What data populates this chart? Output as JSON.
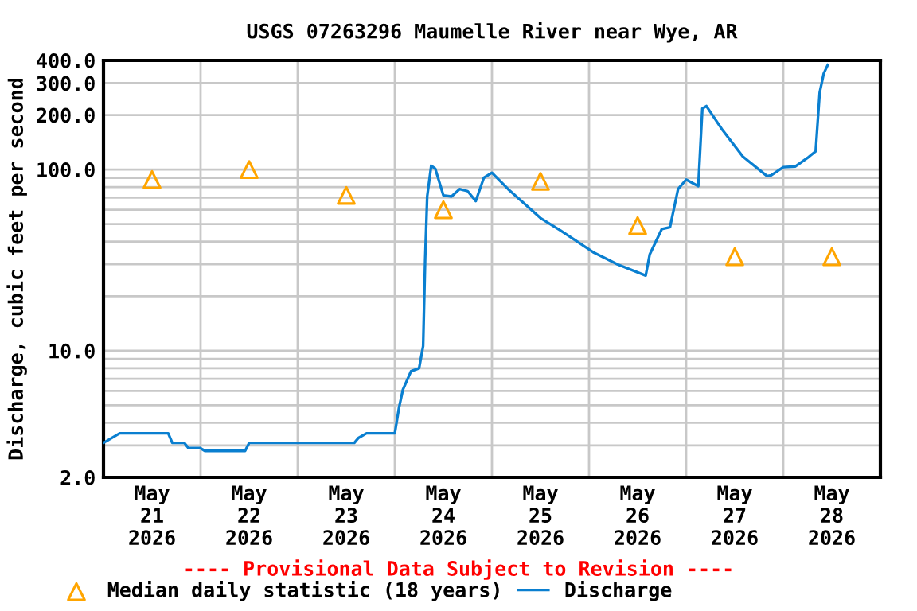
{
  "chart_data": {
    "type": "line",
    "title": "USGS 07263296 Maumelle River near Wye, AR",
    "ylabel": "Discharge, cubic feet per second",
    "annotations": [
      "---- Provisional Data Subject to Revision ----"
    ],
    "log": "y",
    "grid": true,
    "legend": "bottom",
    "xlim": [
      "2026-05-21T00:00",
      "2026-05-29T00:00"
    ],
    "xticks": [
      {
        "value": "2026-05-21T12:00",
        "label": "May\n21\n2026"
      },
      {
        "value": "2026-05-22T12:00",
        "label": "May\n22\n2026"
      },
      {
        "value": "2026-05-23T12:00",
        "label": "May\n23\n2026"
      },
      {
        "value": "2026-05-24T12:00",
        "label": "May\n24\n2026"
      },
      {
        "value": "2026-05-25T12:00",
        "label": "May\n25\n2026"
      },
      {
        "value": "2026-05-26T12:00",
        "label": "May\n26\n2026"
      },
      {
        "value": "2026-05-27T12:00",
        "label": "May\n27\n2026"
      },
      {
        "value": "2026-05-28T12:00",
        "label": "May\n28\n2026"
      },
      {
        "value": "2026-05-22T00:00",
        "label": null
      },
      {
        "value": "2026-05-23T00:00",
        "label": null
      },
      {
        "value": "2026-05-24T00:00",
        "label": null
      },
      {
        "value": "2026-05-25T00:00",
        "label": null
      },
      {
        "value": "2026-05-26T00:00",
        "label": null
      },
      {
        "value": "2026-05-27T00:00",
        "label": null
      },
      {
        "value": "2026-05-28T00:00",
        "label": null
      }
    ],
    "ylim": [
      2,
      400
    ],
    "yticks": [
      {
        "value": 2,
        "label": "2.0"
      },
      {
        "value": 3,
        "label": null
      },
      {
        "value": 4,
        "label": null
      },
      {
        "value": 5,
        "label": null
      },
      {
        "value": 6,
        "label": null
      },
      {
        "value": 7,
        "label": null
      },
      {
        "value": 8,
        "label": null
      },
      {
        "value": 9,
        "label": null
      },
      {
        "value": 10,
        "label": "10.0"
      },
      {
        "value": 20,
        "label": null
      },
      {
        "value": 30,
        "label": null
      },
      {
        "value": 40,
        "label": null
      },
      {
        "value": 50,
        "label": null
      },
      {
        "value": 60,
        "label": null
      },
      {
        "value": 70,
        "label": null
      },
      {
        "value": 80,
        "label": null
      },
      {
        "value": 90,
        "label": null
      },
      {
        "value": 100,
        "label": "100.0"
      },
      {
        "value": 200,
        "label": "200.0"
      },
      {
        "value": 300,
        "label": "300.0"
      },
      {
        "value": 400,
        "label": "400.0"
      }
    ],
    "series": [
      {
        "name": "Median daily statistic (18 years)",
        "type": "scatter",
        "marker": "triangle",
        "color": "#ffa500",
        "x": [
          "2026-05-21T12:00",
          "2026-05-22T12:00",
          "2026-05-23T12:00",
          "2026-05-24T12:00",
          "2026-05-25T12:00",
          "2026-05-26T12:00",
          "2026-05-27T12:00",
          "2026-05-28T12:00"
        ],
        "values": [
          88,
          100,
          72,
          60,
          86,
          49,
          33,
          33
        ]
      },
      {
        "name": "Discharge",
        "color": "#0a7fd0",
        "x": [
          "2026-05-21T00:00",
          "2026-05-21T04:00",
          "2026-05-21T16:00",
          "2026-05-21T17:00",
          "2026-05-21T20:00",
          "2026-05-21T21:00",
          "2026-05-22T00:00",
          "2026-05-22T01:00",
          "2026-05-22T11:00",
          "2026-05-22T12:00",
          "2026-05-23T14:00",
          "2026-05-23T15:00",
          "2026-05-23T17:00",
          "2026-05-24T00:00",
          "2026-05-24T01:00",
          "2026-05-24T02:00",
          "2026-05-24T04:00",
          "2026-05-24T06:00",
          "2026-05-24T07:00",
          "2026-05-24T07:30",
          "2026-05-24T08:00",
          "2026-05-24T09:00",
          "2026-05-24T10:00",
          "2026-05-24T12:00",
          "2026-05-24T14:00",
          "2026-05-24T16:00",
          "2026-05-24T18:00",
          "2026-05-24T20:00",
          "2026-05-24T22:00",
          "2026-05-25T00:00",
          "2026-05-25T04:00",
          "2026-05-25T12:00",
          "2026-05-25T17:00",
          "2026-05-26T01:00",
          "2026-05-26T07:00",
          "2026-05-26T14:00",
          "2026-05-26T15:00",
          "2026-05-26T18:00",
          "2026-05-26T20:00",
          "2026-05-26T22:00",
          "2026-05-27T00:00",
          "2026-05-27T03:00",
          "2026-05-27T04:00",
          "2026-05-27T05:00",
          "2026-05-27T09:00",
          "2026-05-27T14:00",
          "2026-05-27T20:00",
          "2026-05-27T21:00",
          "2026-05-28T00:00",
          "2026-05-28T03:00",
          "2026-05-28T06:00",
          "2026-05-28T08:00",
          "2026-05-28T09:00",
          "2026-05-28T10:00",
          "2026-05-28T11:00"
        ],
        "values": [
          3.1,
          3.5,
          3.5,
          3.1,
          3.1,
          2.9,
          2.9,
          2.8,
          2.8,
          3.1,
          3.1,
          3.3,
          3.5,
          3.5,
          4.8,
          6.1,
          7.7,
          8.0,
          10.6,
          32,
          71,
          105,
          101,
          72,
          71,
          78,
          76,
          67,
          90,
          96,
          78,
          54,
          46,
          35,
          30,
          26,
          34,
          47,
          48,
          78,
          88,
          81,
          217,
          224,
          165,
          118,
          92,
          93,
          103,
          104,
          116,
          126,
          266,
          339,
          378
        ]
      }
    ]
  }
}
